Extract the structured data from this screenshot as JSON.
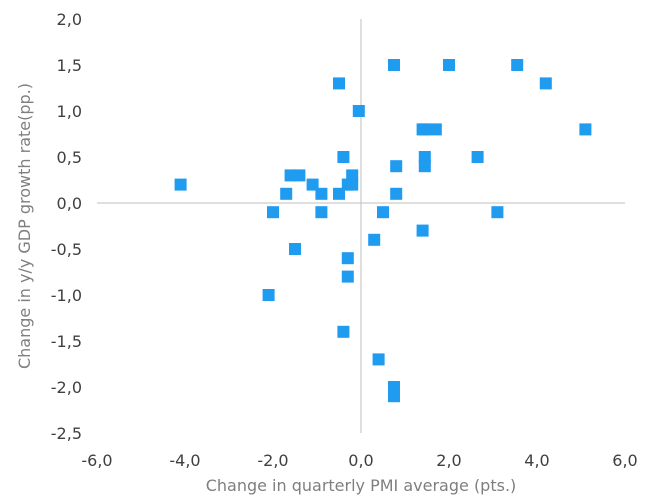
{
  "chart_data": {
    "type": "scatter",
    "title": "",
    "xlabel": "Change in quarterly PMI average (pts.)",
    "ylabel": "Change in y/y GDP growth rate(pp.)",
    "xlim": [
      -6,
      6
    ],
    "ylim": [
      -2.5,
      2
    ],
    "x_ticks": [
      "-6,0",
      "-4,0",
      "-2,0",
      "0,0",
      "2,0",
      "4,0",
      "6,0"
    ],
    "y_ticks": [
      "2,0",
      "1,5",
      "1,0",
      "0,5",
      "0,0",
      "-0,5",
      "-1,0",
      "-1,5",
      "-2,0",
      "-2,5"
    ],
    "grid": false,
    "legend": "none",
    "marker": "square",
    "color": "#1f9bf0",
    "series": [
      {
        "x": [
          -4.1,
          -2.1,
          -2.0,
          -1.7,
          -1.6,
          -1.5,
          -1.4,
          -1.1,
          -0.9,
          -0.9,
          -0.5,
          -0.5,
          -0.4,
          -0.4,
          -0.3,
          -0.3,
          -0.3,
          -0.2,
          -0.2,
          -0.05,
          0.3,
          0.4,
          0.5,
          0.75,
          0.75,
          0.75,
          0.8,
          0.8,
          1.4,
          1.4,
          1.45,
          1.45,
          1.45,
          1.7,
          2.0,
          2.65,
          3.1,
          3.55,
          4.2,
          5.1
        ],
        "y": [
          0.2,
          -1.0,
          -0.1,
          0.1,
          0.3,
          -0.5,
          0.3,
          0.2,
          -0.1,
          0.1,
          1.3,
          0.1,
          0.5,
          -1.4,
          -0.8,
          -0.6,
          0.2,
          0.3,
          0.2,
          1.0,
          -0.4,
          -1.7,
          -0.1,
          1.5,
          -2.0,
          -2.1,
          0.4,
          0.1,
          -0.3,
          0.8,
          0.5,
          0.4,
          0.8,
          0.8,
          1.5,
          0.5,
          -0.1,
          1.5,
          1.3,
          0.8
        ]
      }
    ]
  }
}
